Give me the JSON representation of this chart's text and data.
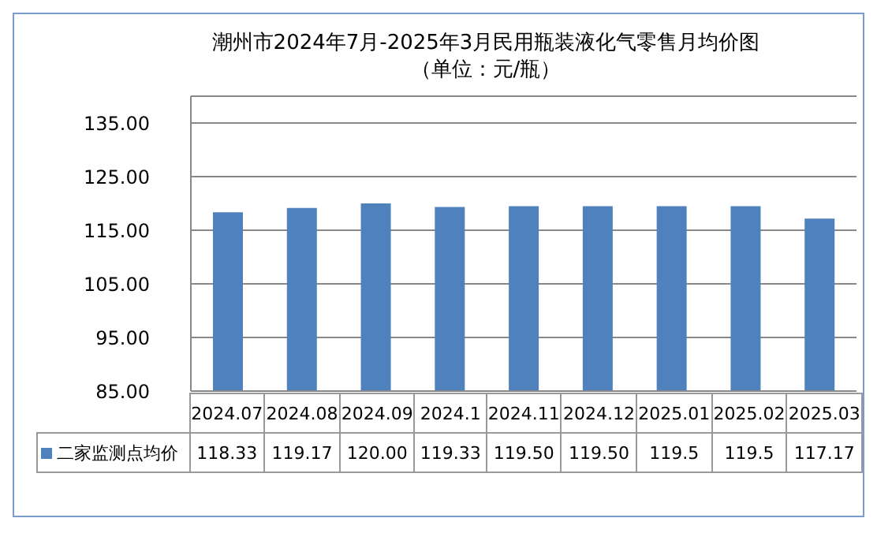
{
  "chart_data": {
    "type": "bar",
    "title": "潮州市2024年7月-2025年3月民用瓶装液化气零售月均价图",
    "subtitle": "（单位：元/瓶）",
    "categories": [
      "2024.07",
      "2024.08",
      "2024.09",
      "2024.1",
      "2024.11",
      "2024.12",
      "2025.01",
      "2025.02",
      "2025.03"
    ],
    "series": [
      {
        "name": "二家监测点均价",
        "color": "#4f81bd",
        "values": [
          118.33,
          119.17,
          120.0,
          119.33,
          119.5,
          119.5,
          119.5,
          119.5,
          117.17
        ],
        "value_labels": [
          "118.33",
          "119.17",
          "120.00",
          "119.33",
          "119.50",
          "119.50",
          "119.5",
          "119.5",
          "117.17"
        ]
      }
    ],
    "ylim": [
      85,
      140
    ],
    "yticks": [
      {
        "value": 85,
        "label": "85.00"
      },
      {
        "value": 95,
        "label": "95.00"
      },
      {
        "value": 105,
        "label": "105.00"
      },
      {
        "value": 115,
        "label": "115.00"
      },
      {
        "value": 125,
        "label": "125.00"
      },
      {
        "value": 135,
        "label": "135.00"
      }
    ],
    "grid": "y",
    "legend": "bottom"
  }
}
